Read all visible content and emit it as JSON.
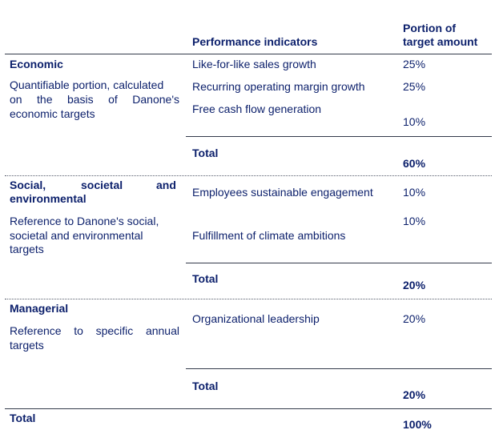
{
  "header": {
    "indicators": "Performance indicators",
    "portion_line1": "Portion of",
    "portion_line2": "target amount"
  },
  "economic": {
    "title": "Economic",
    "desc_line1": "Quantifiable portion, calculated",
    "desc_line2": "on the basis of Danone's",
    "desc_line3": "economic targets",
    "ind1": "Like-for-like sales growth",
    "ind2": "Recurring operating margin growth",
    "ind3": "Free cash flow generation",
    "p1": "25%",
    "p2": "25%",
    "p3": "10%",
    "total_label": "Total",
    "total_value": "60%"
  },
  "social": {
    "title_line1_a": "Social,",
    "title_line1_b": "societal",
    "title_line1_c": "and",
    "title_line2": "environmental",
    "desc_line1": "Reference to Danone's social,",
    "desc_line2": "societal and environmental",
    "desc_line3": "targets",
    "ind1": "Employees sustainable engagement",
    "ind2": "Fulfillment of climate ambitions",
    "p1": "10%",
    "p2": "10%",
    "total_label": "Total",
    "total_value": "20%"
  },
  "managerial": {
    "title": "Managerial",
    "desc_line1": "Reference to specific annual",
    "desc_line2": "targets",
    "ind1": "Organizational leadership",
    "p1": "20%",
    "total_label": "Total",
    "total_value": "20%"
  },
  "grand_total": {
    "label": "Total",
    "value": "100%"
  }
}
